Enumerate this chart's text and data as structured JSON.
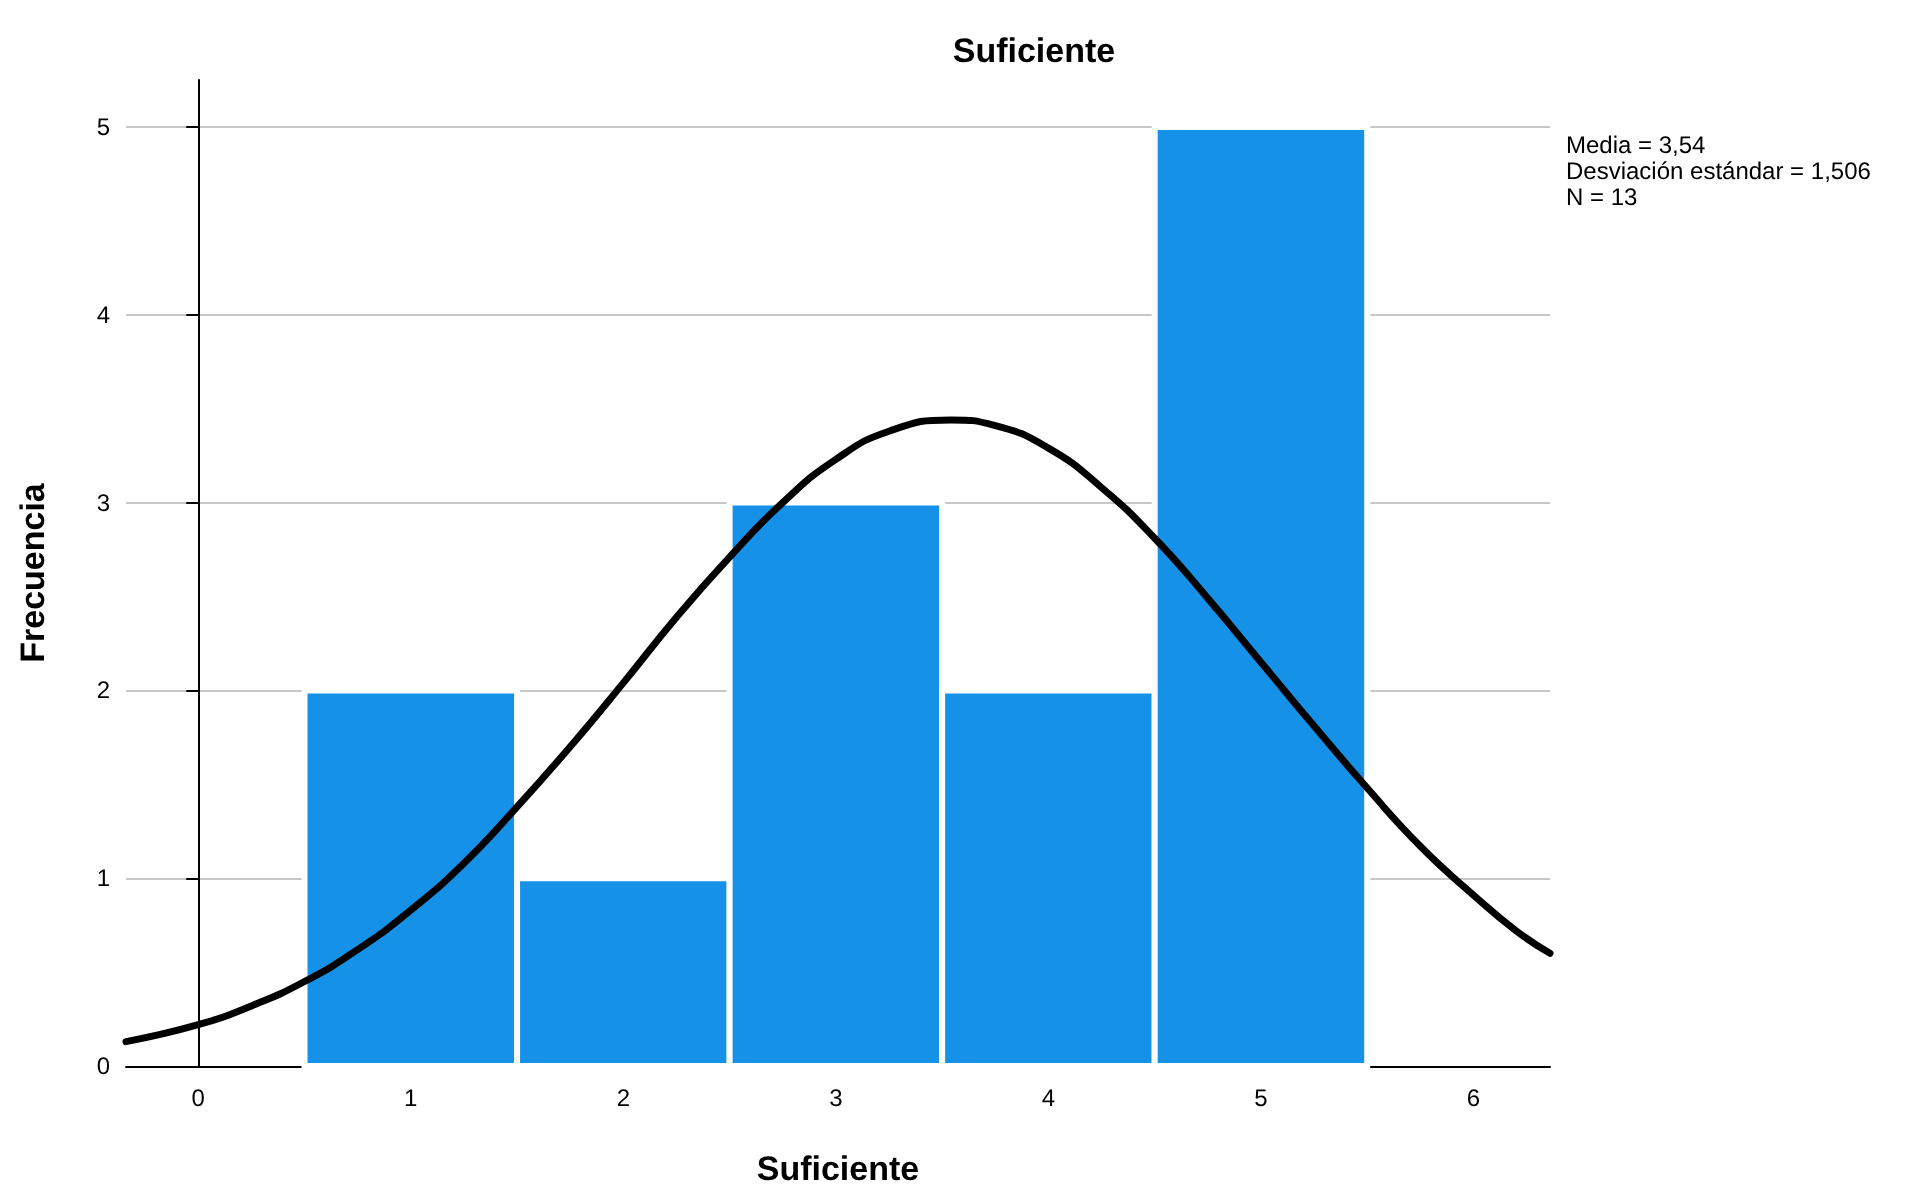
{
  "chart_data": {
    "type": "histogram",
    "title": "Suficiente",
    "xlabel": "Suficiente",
    "ylabel": "Frecuencia",
    "bins": [
      0.5,
      1.5,
      2.5,
      3.5,
      4.5,
      5.5
    ],
    "values": [
      2,
      1,
      3,
      2,
      5
    ],
    "color": "#1591e8",
    "series": [
      {
        "type": "line",
        "color": "#000000",
        "marker": "none",
        "x": [
          -0.34,
          0,
          0.25,
          0.5,
          0.75,
          1,
          1.25,
          1.5,
          1.75,
          2,
          2.25,
          2.5,
          2.75,
          3,
          3.25,
          3.54,
          3.75,
          4,
          4.25,
          4.5,
          4.75,
          5,
          5.25,
          5.5,
          5.75,
          6,
          6.2,
          6.36
        ],
        "values": [
          0.13,
          0.22,
          0.32,
          0.45,
          0.62,
          0.83,
          1.08,
          1.38,
          1.7,
          2.04,
          2.39,
          2.71,
          3.0,
          3.23,
          3.38,
          3.44,
          3.41,
          3.29,
          3.08,
          2.81,
          2.49,
          2.15,
          1.81,
          1.48,
          1.17,
          0.91,
          0.72,
          0.6
        ]
      }
    ],
    "xlim": [
      -0.34,
      6.36
    ],
    "xticks": [
      0,
      1,
      2,
      3,
      4,
      5,
      6
    ],
    "ylim": [
      0,
      5.25
    ],
    "yticks": [
      0,
      1,
      2,
      3,
      4,
      5
    ],
    "grid": "y",
    "annotations": [
      "Media = 3,54",
      "Desviación estándar = 1,506",
      "N = 13"
    ]
  }
}
